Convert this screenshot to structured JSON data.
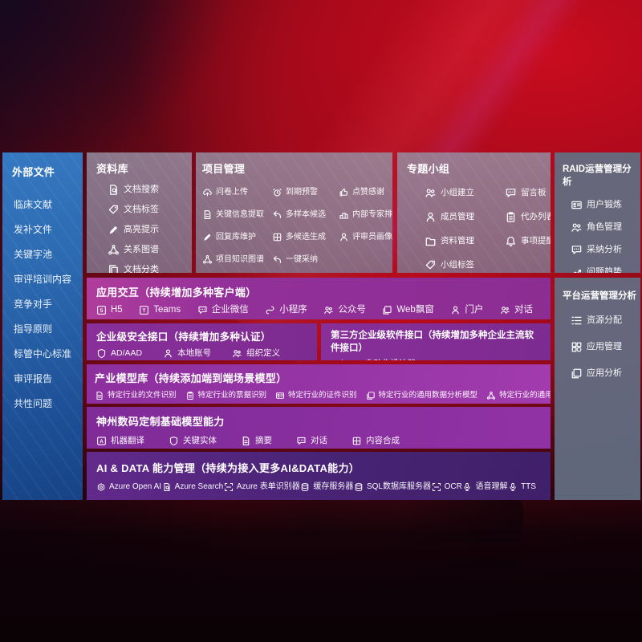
{
  "colors": {
    "background_red": "#bb0b1d",
    "sidebar_blue": "#2a66ad",
    "panel_gray": "#8d8298",
    "panel_slate": "#636d83",
    "row_magenta": "#93309a",
    "row_purple": "#8a2f9b",
    "row_indigo": "#4a2477",
    "text": "#ffffff"
  },
  "sidebar": {
    "title": "外部文件",
    "items": [
      {
        "label": "临床文献"
      },
      {
        "label": "发补文件"
      },
      {
        "label": "关键字池"
      },
      {
        "label": "审评培训内容"
      },
      {
        "label": "竞争对手"
      },
      {
        "label": "指导原则"
      },
      {
        "label": "标管中心标准"
      },
      {
        "label": "审评报告"
      },
      {
        "label": "共性问题"
      }
    ]
  },
  "panels": {
    "library": {
      "title": "资料库",
      "items": [
        {
          "label": "文档搜索",
          "icon": "document-search"
        },
        {
          "label": "文档标签",
          "icon": "tag"
        },
        {
          "label": "高亮提示",
          "icon": "pencil"
        },
        {
          "label": "关系图谱",
          "icon": "graph"
        },
        {
          "label": "文档分类",
          "icon": "docs"
        }
      ]
    },
    "project": {
      "title": "项目管理",
      "items": [
        {
          "label": "问卷上传",
          "icon": "cloud-upload"
        },
        {
          "label": "到期预警",
          "icon": "alarm"
        },
        {
          "label": "点赞感谢",
          "icon": "thumb-up"
        },
        {
          "label": "关键信息提取",
          "icon": "doc"
        },
        {
          "label": "多样本候选",
          "icon": "reply-arrow"
        },
        {
          "label": "内部专家排名",
          "icon": "podium"
        },
        {
          "label": "回复库维护",
          "icon": "pencil"
        },
        {
          "label": "多候选生成",
          "icon": "puzzle"
        },
        {
          "label": "评审员画像",
          "icon": "person"
        },
        {
          "label": "项目知识图谱",
          "icon": "graph"
        },
        {
          "label": "一键采纳",
          "icon": "reply-arrow"
        }
      ]
    },
    "groups": {
      "title": "专题小组",
      "items": [
        {
          "label": "小组建立",
          "icon": "people"
        },
        {
          "label": "留言板",
          "icon": "chat"
        },
        {
          "label": "成员管理",
          "icon": "person"
        },
        {
          "label": "代办列表",
          "icon": "clipboard"
        },
        {
          "label": "资料管理",
          "icon": "folder"
        },
        {
          "label": "事项提醒",
          "icon": "bell"
        },
        {
          "label": "小组标签",
          "icon": "tag"
        }
      ]
    },
    "raid": {
      "title": "RAID运营管理分析",
      "items": [
        {
          "label": "用户锻炼",
          "icon": "id-card"
        },
        {
          "label": "角色管理",
          "icon": "people"
        },
        {
          "label": "采纳分析",
          "icon": "chat"
        },
        {
          "label": "问题趋势",
          "icon": "trend-chart"
        }
      ]
    },
    "platform": {
      "title": "平台运营管理分析",
      "items": [
        {
          "label": "资源分配",
          "icon": "list"
        },
        {
          "label": "应用管理",
          "icon": "grid"
        },
        {
          "label": "应用分析",
          "icon": "window"
        }
      ]
    },
    "interaction": {
      "title": "应用交互（持续增加多种客户端）",
      "items": [
        {
          "label": "H5",
          "icon": "h5"
        },
        {
          "label": "Teams",
          "icon": "teams"
        },
        {
          "label": "企业微信",
          "icon": "chat"
        },
        {
          "label": "小程序",
          "icon": "mini-program"
        },
        {
          "label": "公众号",
          "icon": "people"
        },
        {
          "label": "Web飘窗",
          "icon": "window"
        },
        {
          "label": "门户",
          "icon": "person"
        },
        {
          "label": "对话",
          "icon": "people"
        }
      ]
    },
    "security": {
      "title": "企业级安全接口（持续增加多种认证）",
      "items": [
        {
          "label": "AD/AAD",
          "icon": "shield"
        },
        {
          "label": "本地账号",
          "icon": "person"
        },
        {
          "label": "组织定义",
          "icon": "people"
        }
      ]
    },
    "third_party": {
      "title": "第三方企业级软件接口（持续增加多种企业主流软件接口）",
      "items": [
        {
          "label": "API自动化设计器",
          "icon": "gear"
        }
      ]
    },
    "models": {
      "title": "产业模型库（持续添加端到端场景模型）",
      "items": [
        {
          "label": "特定行业的文件识别",
          "icon": "doc"
        },
        {
          "label": "特定行业的票据识别",
          "icon": "clipboard"
        },
        {
          "label": "特定行业的证件识别",
          "icon": "id-card"
        },
        {
          "label": "特定行业的通用数据分析模型",
          "icon": "window"
        },
        {
          "label": "特定行业的通用知识图谱模型",
          "icon": "graph"
        }
      ]
    },
    "base_models": {
      "title": "神州数码定制基础模型能力",
      "items": [
        {
          "label": "机器翻译",
          "icon": "translate"
        },
        {
          "label": "关键实体",
          "icon": "shield"
        },
        {
          "label": "摘要",
          "icon": "doc"
        },
        {
          "label": "对话",
          "icon": "chat"
        },
        {
          "label": "内容合成",
          "icon": "puzzle"
        }
      ]
    },
    "ai_data": {
      "title": "AI & DATA 能力管理（持续为接入更多AI&DATA能力）",
      "items": [
        {
          "label": "Azure Open AI",
          "icon": "openai"
        },
        {
          "label": "Azure Search",
          "icon": "document-search"
        },
        {
          "label": "Azure 表单识别器",
          "icon": "scan"
        },
        {
          "label": "缓存服务器",
          "icon": "database"
        },
        {
          "label": "SQL数据库服务器",
          "icon": "database"
        },
        {
          "label": "OCR",
          "icon": "scan"
        },
        {
          "label": "语音理解",
          "icon": "mic"
        },
        {
          "label": "TTS",
          "icon": "mic"
        }
      ]
    }
  }
}
